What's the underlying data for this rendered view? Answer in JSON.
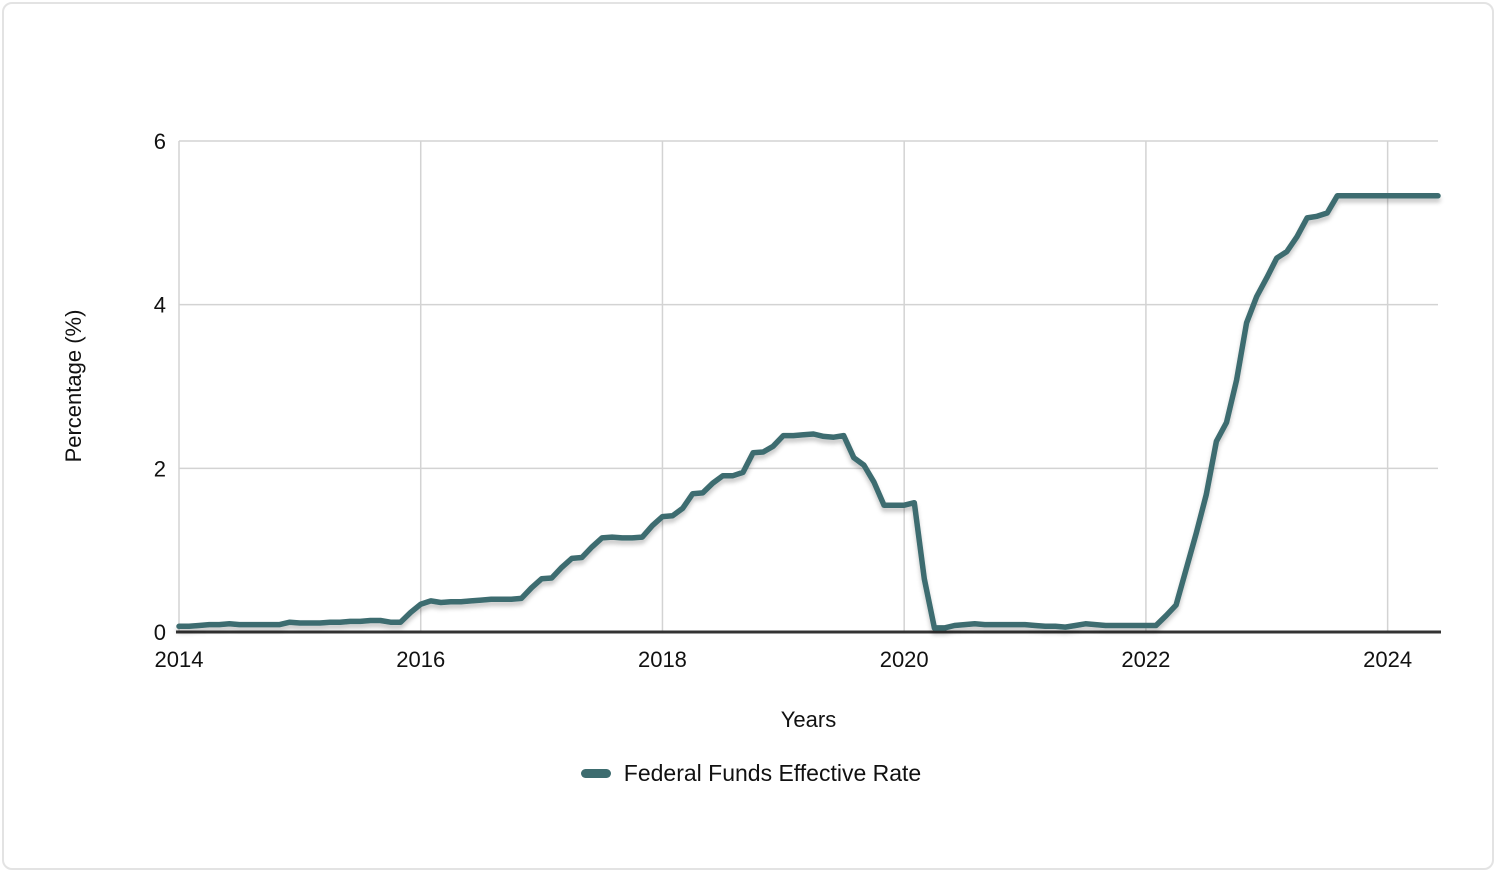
{
  "colors": {
    "line": "#3d6c6f",
    "grid": "#d3d3d3",
    "axis": "#333333",
    "text": "#111111",
    "background": "#ffffff",
    "card_border": "#e3e3e3"
  },
  "legend": {
    "position": "bottom-center",
    "items": [
      {
        "label": "Federal Funds Effective Rate",
        "color": "#3d6c6f",
        "swatch": "thick-line"
      }
    ]
  },
  "chart_data": {
    "type": "line",
    "title": "",
    "xlabel": "Years",
    "ylabel": "Percentage (%)",
    "x_start": "2014-01",
    "x_end": "2024-06",
    "frequency": "monthly",
    "xlim": [
      2014,
      2024.4167
    ],
    "ylim": [
      0,
      6
    ],
    "x_ticks": [
      2014,
      2016,
      2018,
      2020,
      2022,
      2024
    ],
    "y_ticks": [
      0,
      2,
      4,
      6
    ],
    "grid": true,
    "legend_position": "bottom",
    "series": [
      {
        "name": "Federal Funds Effective Rate",
        "color": "#3d6c6f",
        "values": [
          0.07,
          0.07,
          0.08,
          0.09,
          0.09,
          0.1,
          0.09,
          0.09,
          0.09,
          0.09,
          0.09,
          0.12,
          0.11,
          0.11,
          0.11,
          0.12,
          0.12,
          0.13,
          0.13,
          0.14,
          0.14,
          0.12,
          0.12,
          0.24,
          0.34,
          0.38,
          0.36,
          0.37,
          0.37,
          0.38,
          0.39,
          0.4,
          0.4,
          0.4,
          0.41,
          0.54,
          0.65,
          0.66,
          0.79,
          0.9,
          0.91,
          1.04,
          1.15,
          1.16,
          1.15,
          1.15,
          1.16,
          1.3,
          1.41,
          1.42,
          1.51,
          1.69,
          1.7,
          1.82,
          1.91,
          1.91,
          1.95,
          2.19,
          2.2,
          2.27,
          2.4,
          2.4,
          2.41,
          2.42,
          2.39,
          2.38,
          2.4,
          2.13,
          2.04,
          1.83,
          1.55,
          1.55,
          1.55,
          1.58,
          0.65,
          0.05,
          0.05,
          0.08,
          0.09,
          0.1,
          0.09,
          0.09,
          0.09,
          0.09,
          0.09,
          0.08,
          0.07,
          0.07,
          0.06,
          0.08,
          0.1,
          0.09,
          0.08,
          0.08,
          0.08,
          0.08,
          0.08,
          0.08,
          0.2,
          0.33,
          0.77,
          1.21,
          1.68,
          2.33,
          2.56,
          3.08,
          3.78,
          4.1,
          4.33,
          4.57,
          4.65,
          4.83,
          5.06,
          5.08,
          5.12,
          5.33,
          5.33,
          5.33,
          5.33,
          5.33,
          5.33,
          5.33,
          5.33,
          5.33,
          5.33,
          5.33
        ]
      }
    ]
  }
}
